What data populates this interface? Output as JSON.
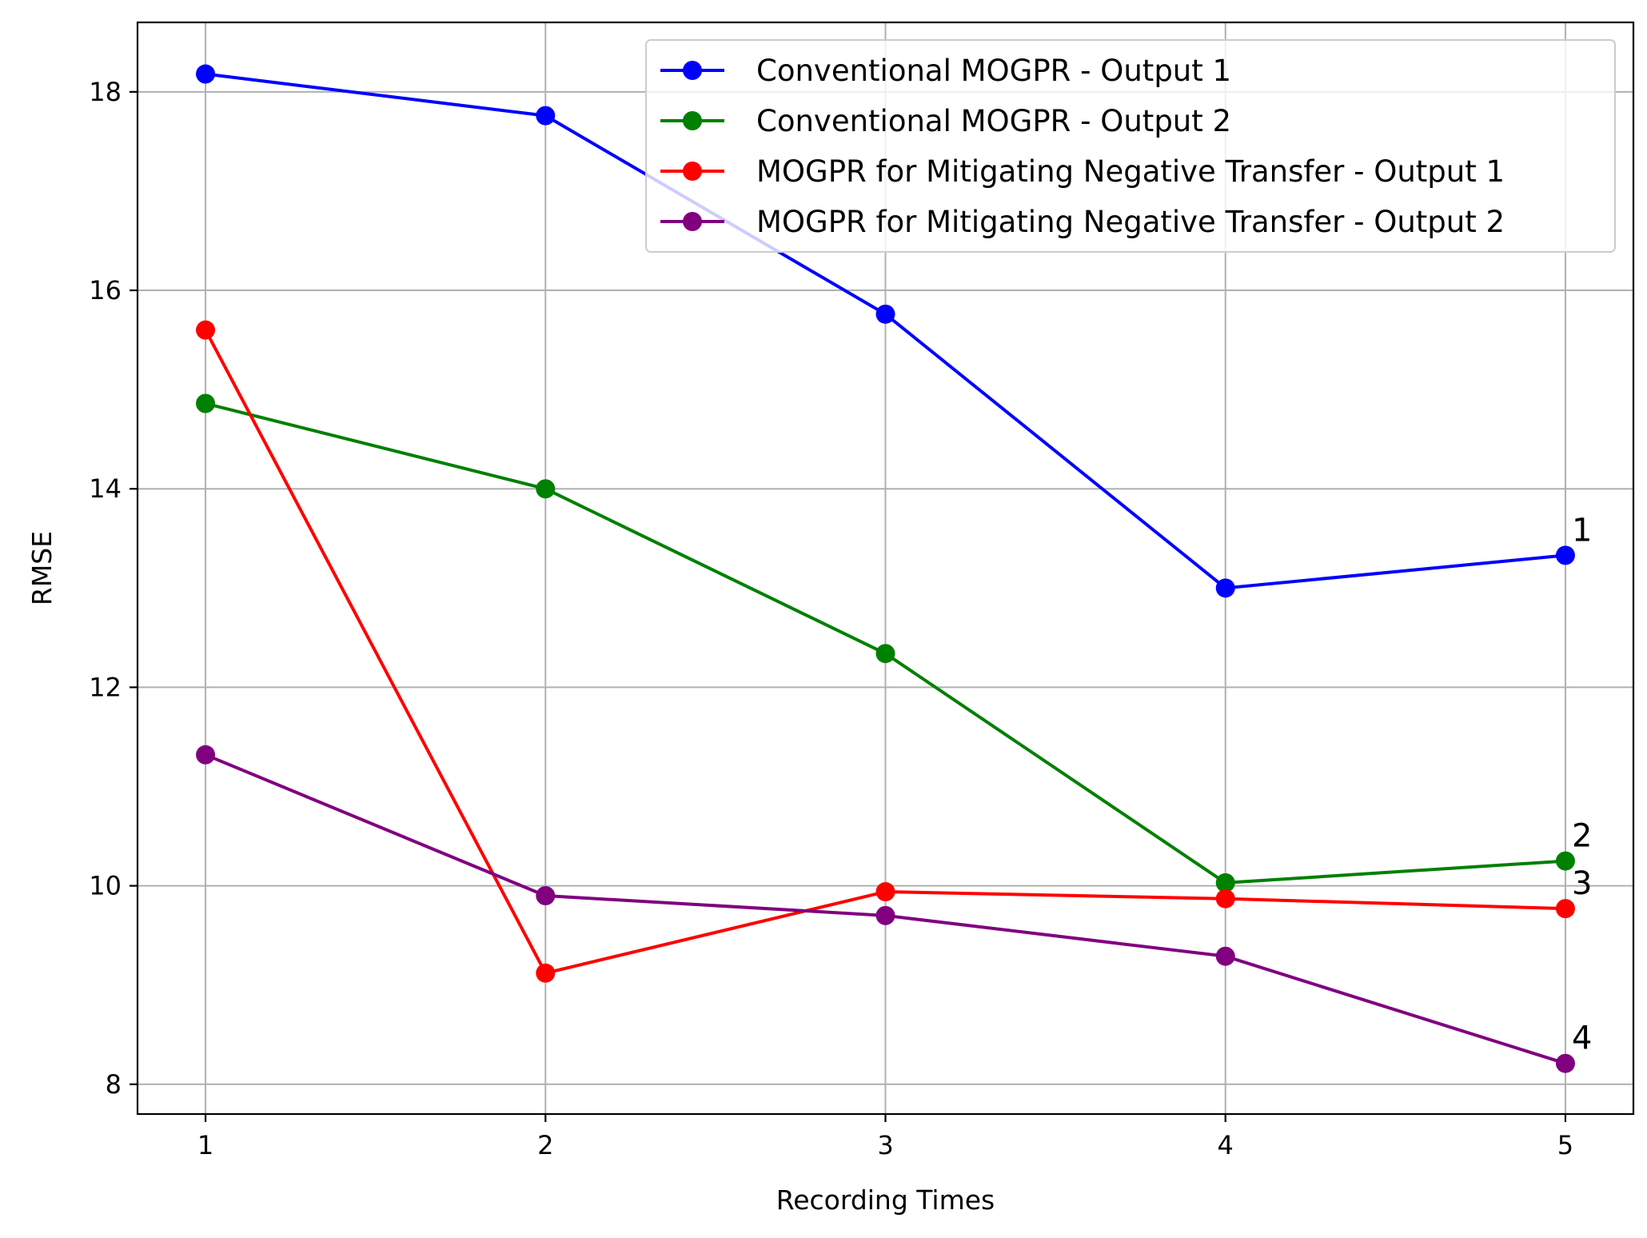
{
  "chart_data": {
    "type": "line",
    "xlabel": "Recording Times",
    "ylabel": "RMSE",
    "x": [
      1,
      2,
      3,
      4,
      5
    ],
    "xlim": [
      0.8,
      5.2
    ],
    "ylim": [
      7.7,
      18.7
    ],
    "xticks": [
      "1",
      "2",
      "3",
      "4",
      "5"
    ],
    "yticks": [
      "8",
      "10",
      "12",
      "14",
      "16",
      "18"
    ],
    "grid": true,
    "legend_position": "upper right",
    "marker": "circle",
    "series": [
      {
        "name": "Conventional MOGPR - Output 1",
        "color": "#0000ff",
        "values": [
          18.18,
          17.76,
          15.76,
          13.0,
          13.33
        ],
        "end_label": "1"
      },
      {
        "name": "Conventional MOGPR - Output 2",
        "color": "#008000",
        "values": [
          14.86,
          14.0,
          12.34,
          10.03,
          10.25
        ],
        "end_label": "2"
      },
      {
        "name": "MOGPR for Mitigating Negative Transfer - Output 1",
        "color": "#ff0000",
        "values": [
          15.6,
          9.12,
          9.94,
          9.87,
          9.77
        ],
        "end_label": "3"
      },
      {
        "name": "MOGPR for Mitigating Negative Transfer - Output 2",
        "color": "#800080",
        "values": [
          11.32,
          9.9,
          9.7,
          9.29,
          8.21
        ],
        "end_label": "4"
      }
    ]
  }
}
